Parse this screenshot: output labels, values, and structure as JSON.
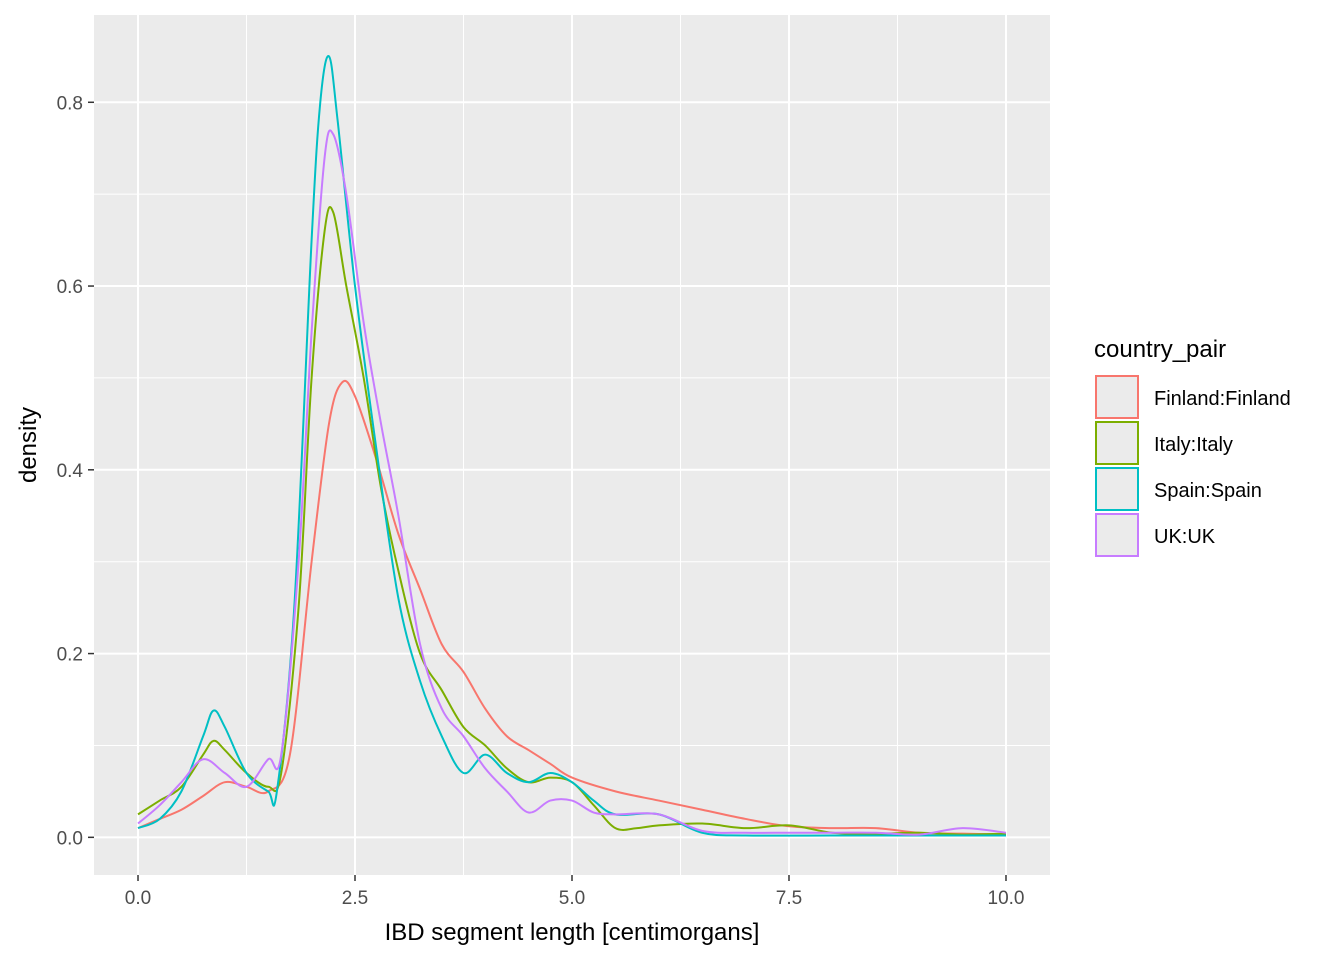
{
  "chart_data": {
    "type": "line",
    "title": "",
    "xlabel": "IBD segment length [centimorgans]",
    "ylabel": "density",
    "xlim": [
      -0.507,
      10.507
    ],
    "ylim": [
      -0.041,
      0.895
    ],
    "xticks": [
      0,
      2.5,
      5,
      7.5,
      10
    ],
    "xtick_labels": [
      "0.0",
      "2.5",
      "5.0",
      "7.5",
      "10.0"
    ],
    "yticks": [
      0,
      0.2,
      0.4,
      0.6,
      0.8
    ],
    "ytick_labels": [
      "0.0",
      "0.2",
      "0.4",
      "0.6",
      "0.8"
    ],
    "grid": true,
    "legend": {
      "title": "country_pair",
      "placement": "right"
    },
    "series": [
      {
        "name": "Finland:Finland",
        "color": "#F8766D",
        "x": [
          0,
          0.25,
          0.5,
          0.75,
          1.0,
          1.25,
          1.5,
          1.75,
          2.0,
          2.2,
          2.35,
          2.5,
          2.75,
          3.0,
          3.25,
          3.5,
          3.75,
          4.0,
          4.25,
          4.5,
          4.75,
          5.0,
          5.5,
          6.0,
          6.5,
          7.0,
          7.5,
          8.0,
          8.5,
          9.0,
          9.5,
          10
        ],
        "y": [
          0.01,
          0.02,
          0.03,
          0.045,
          0.06,
          0.055,
          0.05,
          0.09,
          0.3,
          0.45,
          0.495,
          0.48,
          0.41,
          0.33,
          0.27,
          0.21,
          0.18,
          0.14,
          0.11,
          0.095,
          0.08,
          0.065,
          0.05,
          0.04,
          0.03,
          0.02,
          0.012,
          0.01,
          0.01,
          0.005,
          0.004,
          0.003
        ]
      },
      {
        "name": "Italy:Italy",
        "color": "#7CAE00",
        "x": [
          0,
          0.25,
          0.5,
          0.75,
          0.87,
          1.0,
          1.25,
          1.5,
          1.65,
          1.85,
          2.0,
          2.15,
          2.25,
          2.4,
          2.6,
          2.8,
          3.0,
          3.25,
          3.5,
          3.75,
          4.0,
          4.25,
          4.5,
          4.75,
          5.0,
          5.25,
          5.5,
          5.75,
          6.0,
          6.5,
          7.0,
          7.5,
          8.0,
          8.5,
          9.0,
          9.5,
          10
        ],
        "y": [
          0.025,
          0.04,
          0.055,
          0.09,
          0.105,
          0.095,
          0.07,
          0.055,
          0.07,
          0.25,
          0.5,
          0.66,
          0.68,
          0.6,
          0.5,
          0.38,
          0.29,
          0.2,
          0.16,
          0.12,
          0.1,
          0.075,
          0.06,
          0.065,
          0.06,
          0.035,
          0.01,
          0.01,
          0.013,
          0.015,
          0.01,
          0.013,
          0.005,
          0.004,
          0.005,
          0.003,
          0.004
        ]
      },
      {
        "name": "Spain:Spain",
        "color": "#00BFC4",
        "x": [
          0,
          0.25,
          0.5,
          0.75,
          0.87,
          1.0,
          1.25,
          1.5,
          1.6,
          1.8,
          2.0,
          2.1,
          2.2,
          2.3,
          2.5,
          2.75,
          3.0,
          3.25,
          3.5,
          3.75,
          4.0,
          4.25,
          4.5,
          4.75,
          5.0,
          5.25,
          5.5,
          6.0,
          6.5,
          7.0,
          8.0,
          9.0,
          10
        ],
        "y": [
          0.01,
          0.02,
          0.05,
          0.11,
          0.138,
          0.12,
          0.07,
          0.05,
          0.05,
          0.25,
          0.65,
          0.8,
          0.85,
          0.78,
          0.6,
          0.42,
          0.26,
          0.17,
          0.11,
          0.07,
          0.09,
          0.07,
          0.06,
          0.07,
          0.06,
          0.04,
          0.025,
          0.025,
          0.005,
          0.002,
          0.002,
          0.002,
          0.002
        ]
      },
      {
        "name": "UK:UK",
        "color": "#C77CFF",
        "x": [
          0,
          0.25,
          0.5,
          0.75,
          1.0,
          1.25,
          1.5,
          1.65,
          1.85,
          2.0,
          2.15,
          2.25,
          2.4,
          2.6,
          2.8,
          3.0,
          3.25,
          3.5,
          3.75,
          4.0,
          4.25,
          4.5,
          4.75,
          5.0,
          5.25,
          5.5,
          6.0,
          6.5,
          7.0,
          7.5,
          8.0,
          8.5,
          9.0,
          9.5,
          10
        ],
        "y": [
          0.015,
          0.035,
          0.06,
          0.085,
          0.07,
          0.055,
          0.085,
          0.09,
          0.3,
          0.55,
          0.74,
          0.765,
          0.7,
          0.56,
          0.45,
          0.35,
          0.21,
          0.14,
          0.11,
          0.075,
          0.05,
          0.027,
          0.04,
          0.04,
          0.027,
          0.025,
          0.025,
          0.007,
          0.005,
          0.005,
          0.005,
          0.005,
          0.003,
          0.01,
          0.005
        ]
      }
    ]
  }
}
